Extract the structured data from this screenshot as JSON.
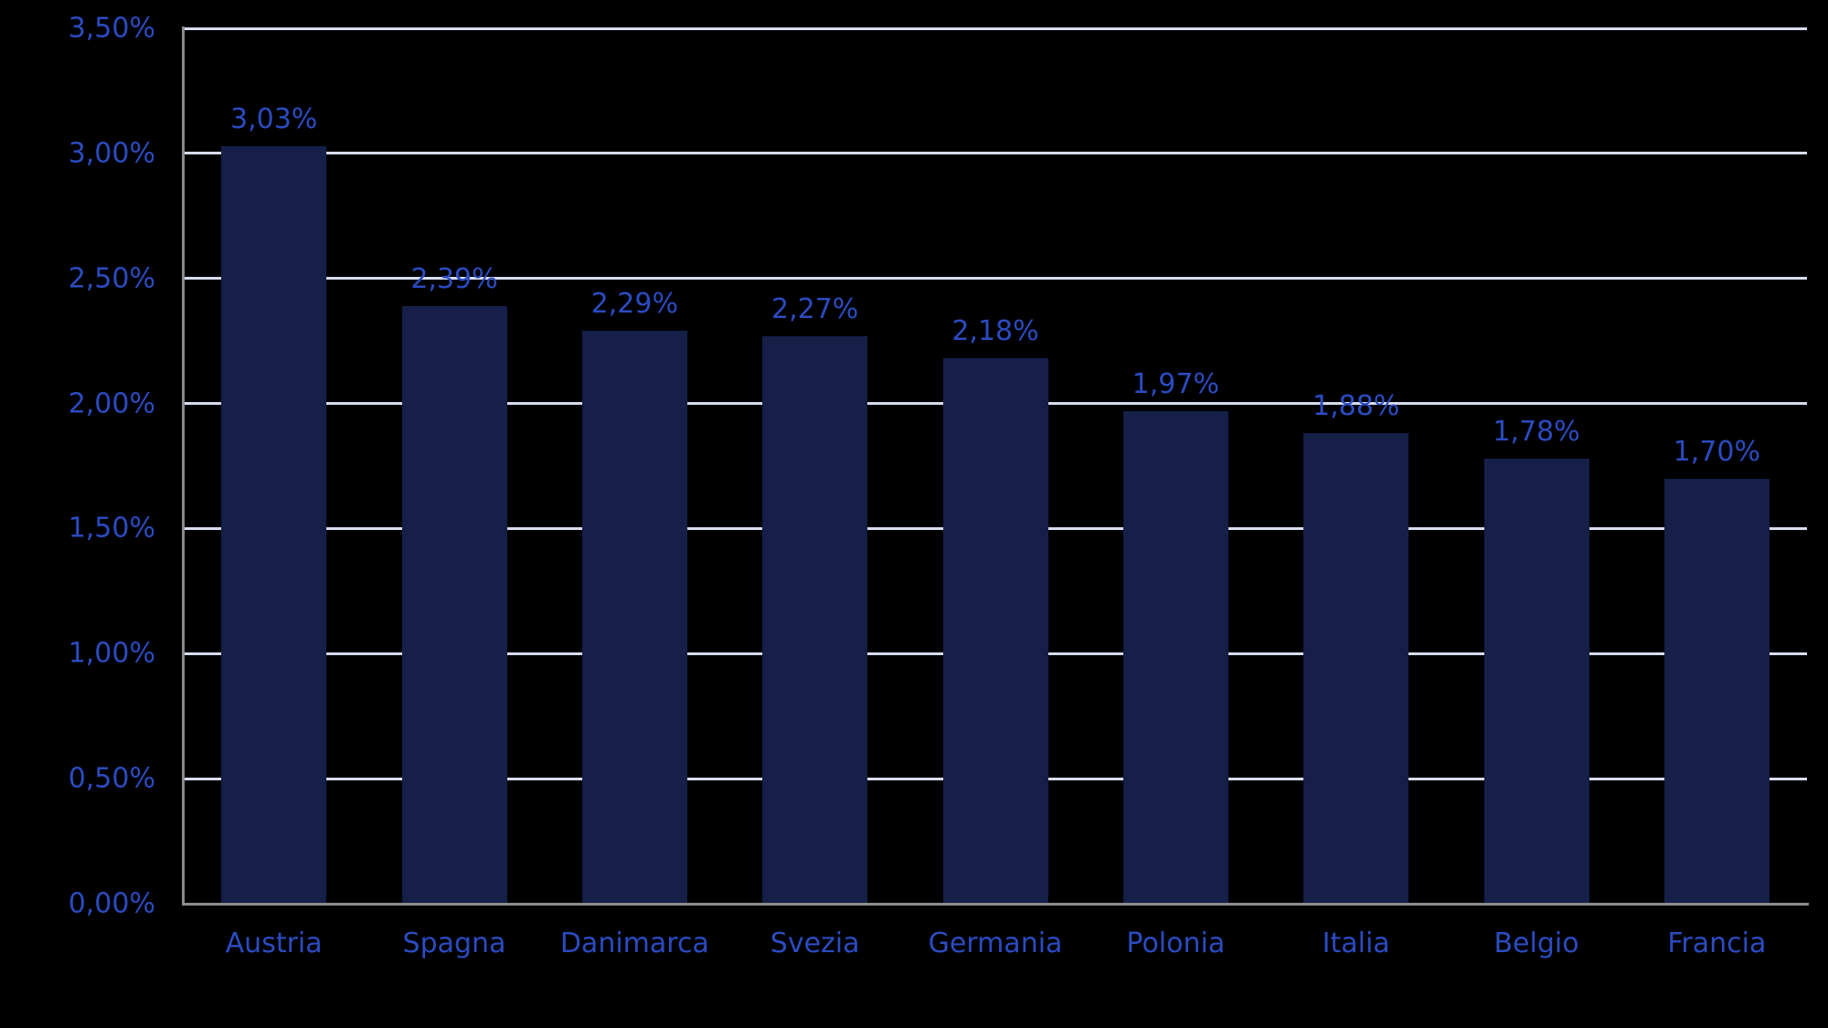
{
  "chart_data": {
    "type": "bar",
    "title": "",
    "xlabel": "",
    "ylabel": "",
    "categories": [
      "Austria",
      "Spagna",
      "Danimarca",
      "Svezia",
      "Germania",
      "Polonia",
      "Italia",
      "Belgio",
      "Francia"
    ],
    "values": [
      3.03,
      2.39,
      2.29,
      2.27,
      2.18,
      1.97,
      1.88,
      1.78,
      1.7
    ],
    "value_labels": [
      "3,03%",
      "2,39%",
      "2,29%",
      "2,27%",
      "2,18%",
      "1,97%",
      "1,88%",
      "1,78%",
      "1,70%"
    ],
    "y_ticks": [
      {
        "value": 0.0,
        "label": "0,00%"
      },
      {
        "value": 0.5,
        "label": "0,50%"
      },
      {
        "value": 1.0,
        "label": "1,00%"
      },
      {
        "value": 1.5,
        "label": "1,50%"
      },
      {
        "value": 2.0,
        "label": "2,00%"
      },
      {
        "value": 2.5,
        "label": "2,50%"
      },
      {
        "value": 3.0,
        "label": "3,00%"
      },
      {
        "value": 3.5,
        "label": "3,50%"
      }
    ],
    "ylim": [
      0,
      3.5
    ],
    "grid": "horizontal",
    "legend": "none",
    "decimal_separator": ",",
    "colors": {
      "background": "#000000",
      "bar_fill": "#151F48",
      "text_blue": "#2B4BC1",
      "gridline": "#D8DCEE",
      "axis_line": "#8C8C8C"
    }
  }
}
